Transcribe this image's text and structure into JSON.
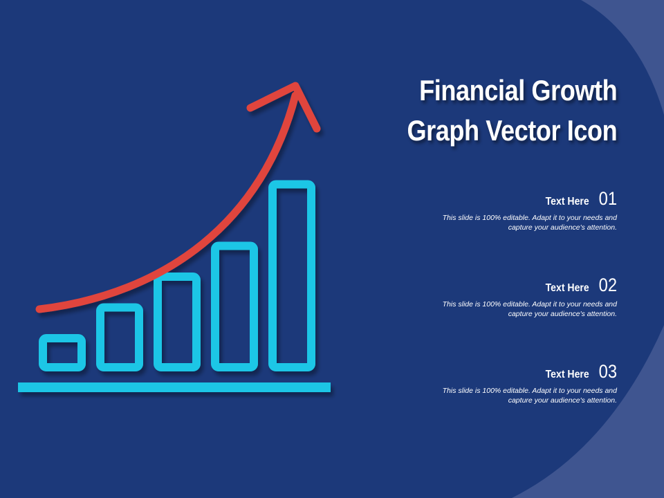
{
  "title": {
    "line1": "Financial Growth",
    "line2": "Graph Vector Icon"
  },
  "points": [
    {
      "label": "Text Here",
      "number": "01",
      "desc_line1": "This slide is 100% editable. Adapt it to your needs and",
      "desc_line2": "capture your audience's attention."
    },
    {
      "label": "Text Here",
      "number": "02",
      "desc_line1": "This slide is 100% editable. Adapt it to your needs and",
      "desc_line2": "capture your audience's attention."
    },
    {
      "label": "Text Here",
      "number": "03",
      "desc_line1": "This slide is 100% editable. Adapt it to your needs and",
      "desc_line2": "capture your audience's attention."
    }
  ],
  "icon": {
    "name": "growth-bar-chart-icon",
    "bar_levels": [
      1,
      2,
      3,
      4,
      6
    ],
    "bar_color": "#1ec6e6",
    "arrow_color": "#e0453d"
  },
  "colors": {
    "background": "#1c397a",
    "accent_arc": "#3f5590",
    "text": "#ffffff"
  }
}
